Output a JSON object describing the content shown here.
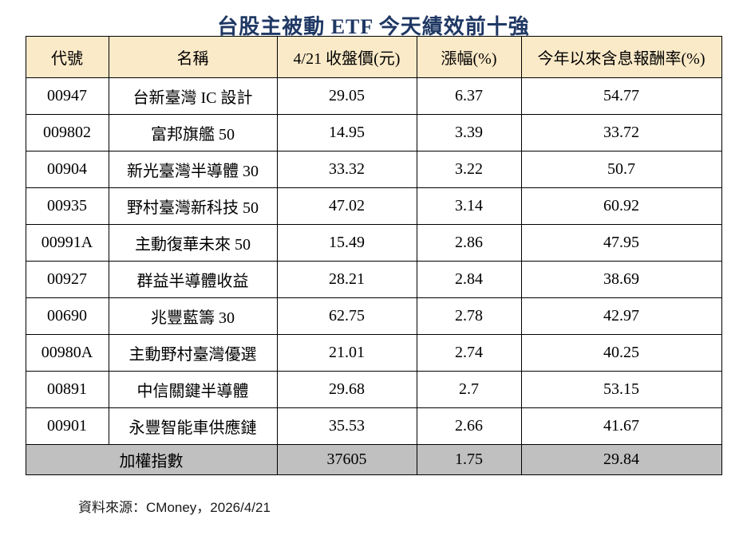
{
  "colors": {
    "title_text": "#1F3864",
    "header_bg": "#FBEAC8",
    "footer_bg": "#C0C0C0",
    "border": "#000000",
    "body_bg": "#FFFFFF"
  },
  "chart_data": {
    "type": "table",
    "title": "台股主被動 ETF  今天績效前十強",
    "columns": [
      "代號",
      "名稱",
      "4/21 收盤價(元)",
      "漲幅(%)",
      "今年以來含息報酬率(%)"
    ],
    "rows": [
      [
        "00947",
        "台新臺灣 IC 設計",
        "29.05",
        "6.37",
        "54.77"
      ],
      [
        "009802",
        "富邦旗艦 50",
        "14.95",
        "3.39",
        "33.72"
      ],
      [
        "00904",
        "新光臺灣半導體 30",
        "33.32",
        "3.22",
        "50.7"
      ],
      [
        "00935",
        "野村臺灣新科技 50",
        "47.02",
        "3.14",
        "60.92"
      ],
      [
        "00991A",
        "主動復華未來 50",
        "15.49",
        "2.86",
        "47.95"
      ],
      [
        "00927",
        "群益半導體收益",
        "28.21",
        "2.84",
        "38.69"
      ],
      [
        "00690",
        "兆豐藍籌 30",
        "62.75",
        "2.78",
        "42.97"
      ],
      [
        "00980A",
        "主動野村臺灣優選",
        "21.01",
        "2.74",
        "40.25"
      ],
      [
        "00891",
        "中信關鍵半導體",
        "29.68",
        "2.7",
        "53.15"
      ],
      [
        "00901",
        "永豐智能車供應鏈",
        "35.53",
        "2.66",
        "41.67"
      ]
    ],
    "footer_row": [
      "加權指數",
      "37605",
      "1.75",
      "29.84"
    ],
    "source": "資料來源：CMoney，2026/4/21",
    "layout": {
      "grid": "full-borders",
      "header_bg": "#FBEAC8",
      "footer_bg": "#C0C0C0"
    }
  }
}
